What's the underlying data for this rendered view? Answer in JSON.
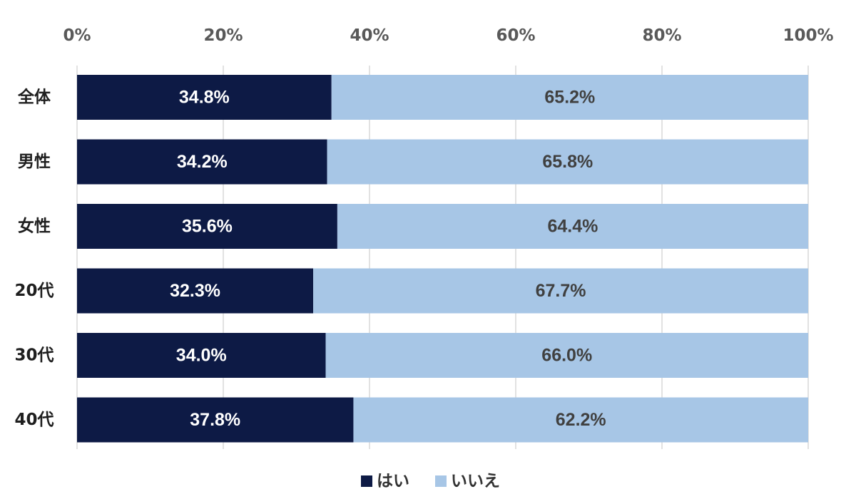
{
  "chart_data": {
    "type": "bar",
    "orientation": "horizontal",
    "stacked": true,
    "percent_stacked": true,
    "categories": [
      "全体",
      "男性",
      "女性",
      "20代",
      "30代",
      "40代"
    ],
    "series": [
      {
        "name": "はい",
        "color": "#0d1a45",
        "values": [
          34.8,
          34.2,
          35.6,
          32.3,
          34.0,
          37.8
        ],
        "labels": [
          "34.8%",
          "34.2%",
          "35.6%",
          "32.3%",
          "34.0%",
          "37.8%"
        ]
      },
      {
        "name": "いいえ",
        "color": "#a7c6e6",
        "values": [
          65.2,
          65.8,
          64.4,
          67.7,
          66.0,
          62.2
        ],
        "labels": [
          "65.2%",
          "65.8%",
          "64.4%",
          "67.7%",
          "66.0%",
          "62.2%"
        ]
      }
    ],
    "x_ticks": [
      "0%",
      "20%",
      "40%",
      "60%",
      "80%",
      "100%"
    ],
    "xlim": [
      0,
      100
    ],
    "x_axis_position": "top",
    "grid": true,
    "legend_position": "bottom",
    "title": "",
    "xlabel": "",
    "ylabel": ""
  }
}
